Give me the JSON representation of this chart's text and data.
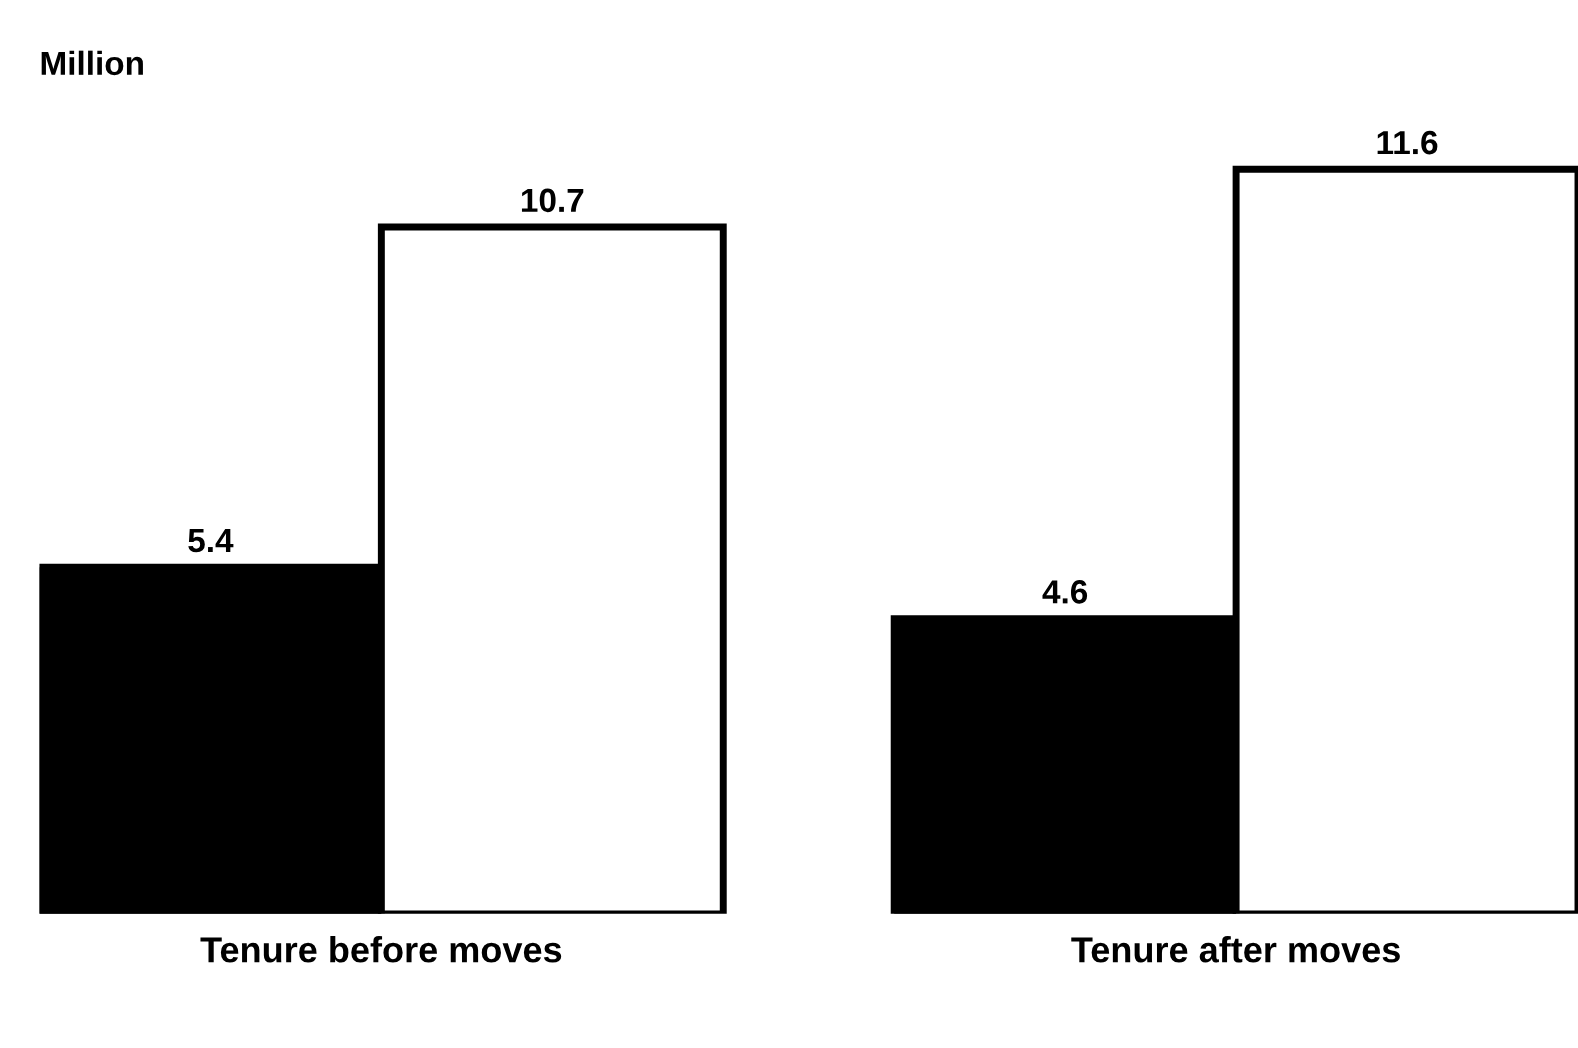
{
  "chart_data": {
    "type": "bar",
    "ylabel": "Million",
    "categories": [
      "Tenure before moves",
      "Tenure after moves"
    ],
    "series": [
      {
        "color": "#000000",
        "values": [
          5.4,
          4.6
        ]
      },
      {
        "color": "#ffffff",
        "values": [
          10.7,
          11.6
        ]
      }
    ],
    "data_labels": true,
    "grid": false,
    "legend": false
  }
}
